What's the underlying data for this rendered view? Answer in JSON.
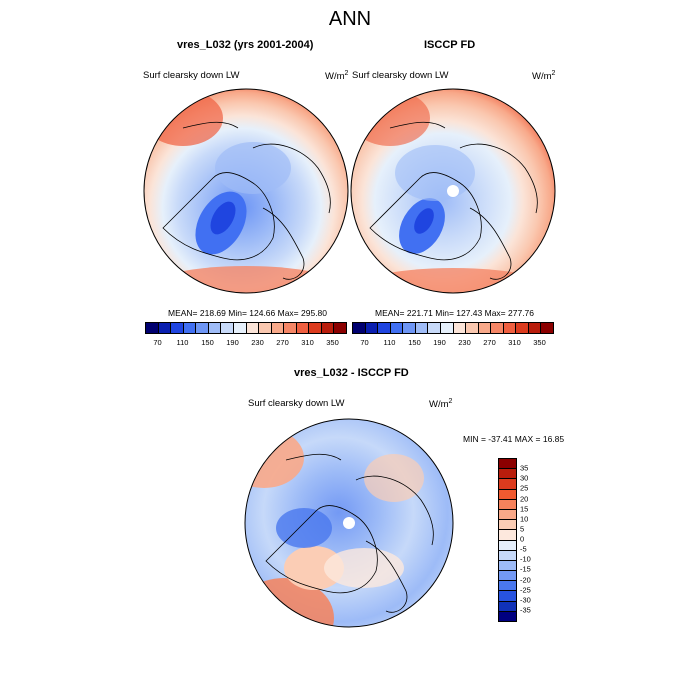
{
  "figure": {
    "title": "ANN"
  },
  "panels": [
    {
      "title": "vres_L032 (yrs 2001-2004)",
      "variable": "Surf clearsky down LW",
      "units": "W/m",
      "units_exp": "2",
      "stats": "MEAN= 218.69  Min= 124.66  Max= 295.80"
    },
    {
      "title": "ISCCP FD",
      "variable": "Surf clearsky down LW",
      "units": "W/m",
      "units_exp": "2",
      "stats": "MEAN= 221.71  Min= 127.43  Max= 277.76"
    }
  ],
  "diff": {
    "title": "vres_L032 - ISCCP FD",
    "variable": "Surf clearsky down LW",
    "units": "W/m",
    "units_exp": "2",
    "stats": "MIN = -37.41  MAX =  16.85"
  },
  "colorbar_main": {
    "colors": [
      "#000070",
      "#0a1fb0",
      "#1f45e0",
      "#4170f2",
      "#6e96f5",
      "#9fbcf7",
      "#c8daf9",
      "#e6f0fb",
      "#fbe4d8",
      "#fac8b0",
      "#f8a98a",
      "#f58666",
      "#ef5f40",
      "#dc3b1e",
      "#b91d0c",
      "#8b0000"
    ],
    "tick_labels": [
      "70",
      "110",
      "150",
      "190",
      "230",
      "270",
      "310",
      "350"
    ]
  },
  "colorbar_diff": {
    "colors": [
      "#8b0000",
      "#b91d0c",
      "#dc3b1e",
      "#f05a30",
      "#f6825c",
      "#f9a888",
      "#fbcdb5",
      "#fde8dd",
      "#e4eefb",
      "#c6d9f9",
      "#9dbbf7",
      "#7399f4",
      "#4a78ee",
      "#2753e0",
      "#1032b8",
      "#000080"
    ],
    "tick_labels": [
      "35",
      "30",
      "25",
      "20",
      "15",
      "10",
      "5",
      "0",
      "-5",
      "-10",
      "-15",
      "-20",
      "-25",
      "-30",
      "-35"
    ]
  }
}
